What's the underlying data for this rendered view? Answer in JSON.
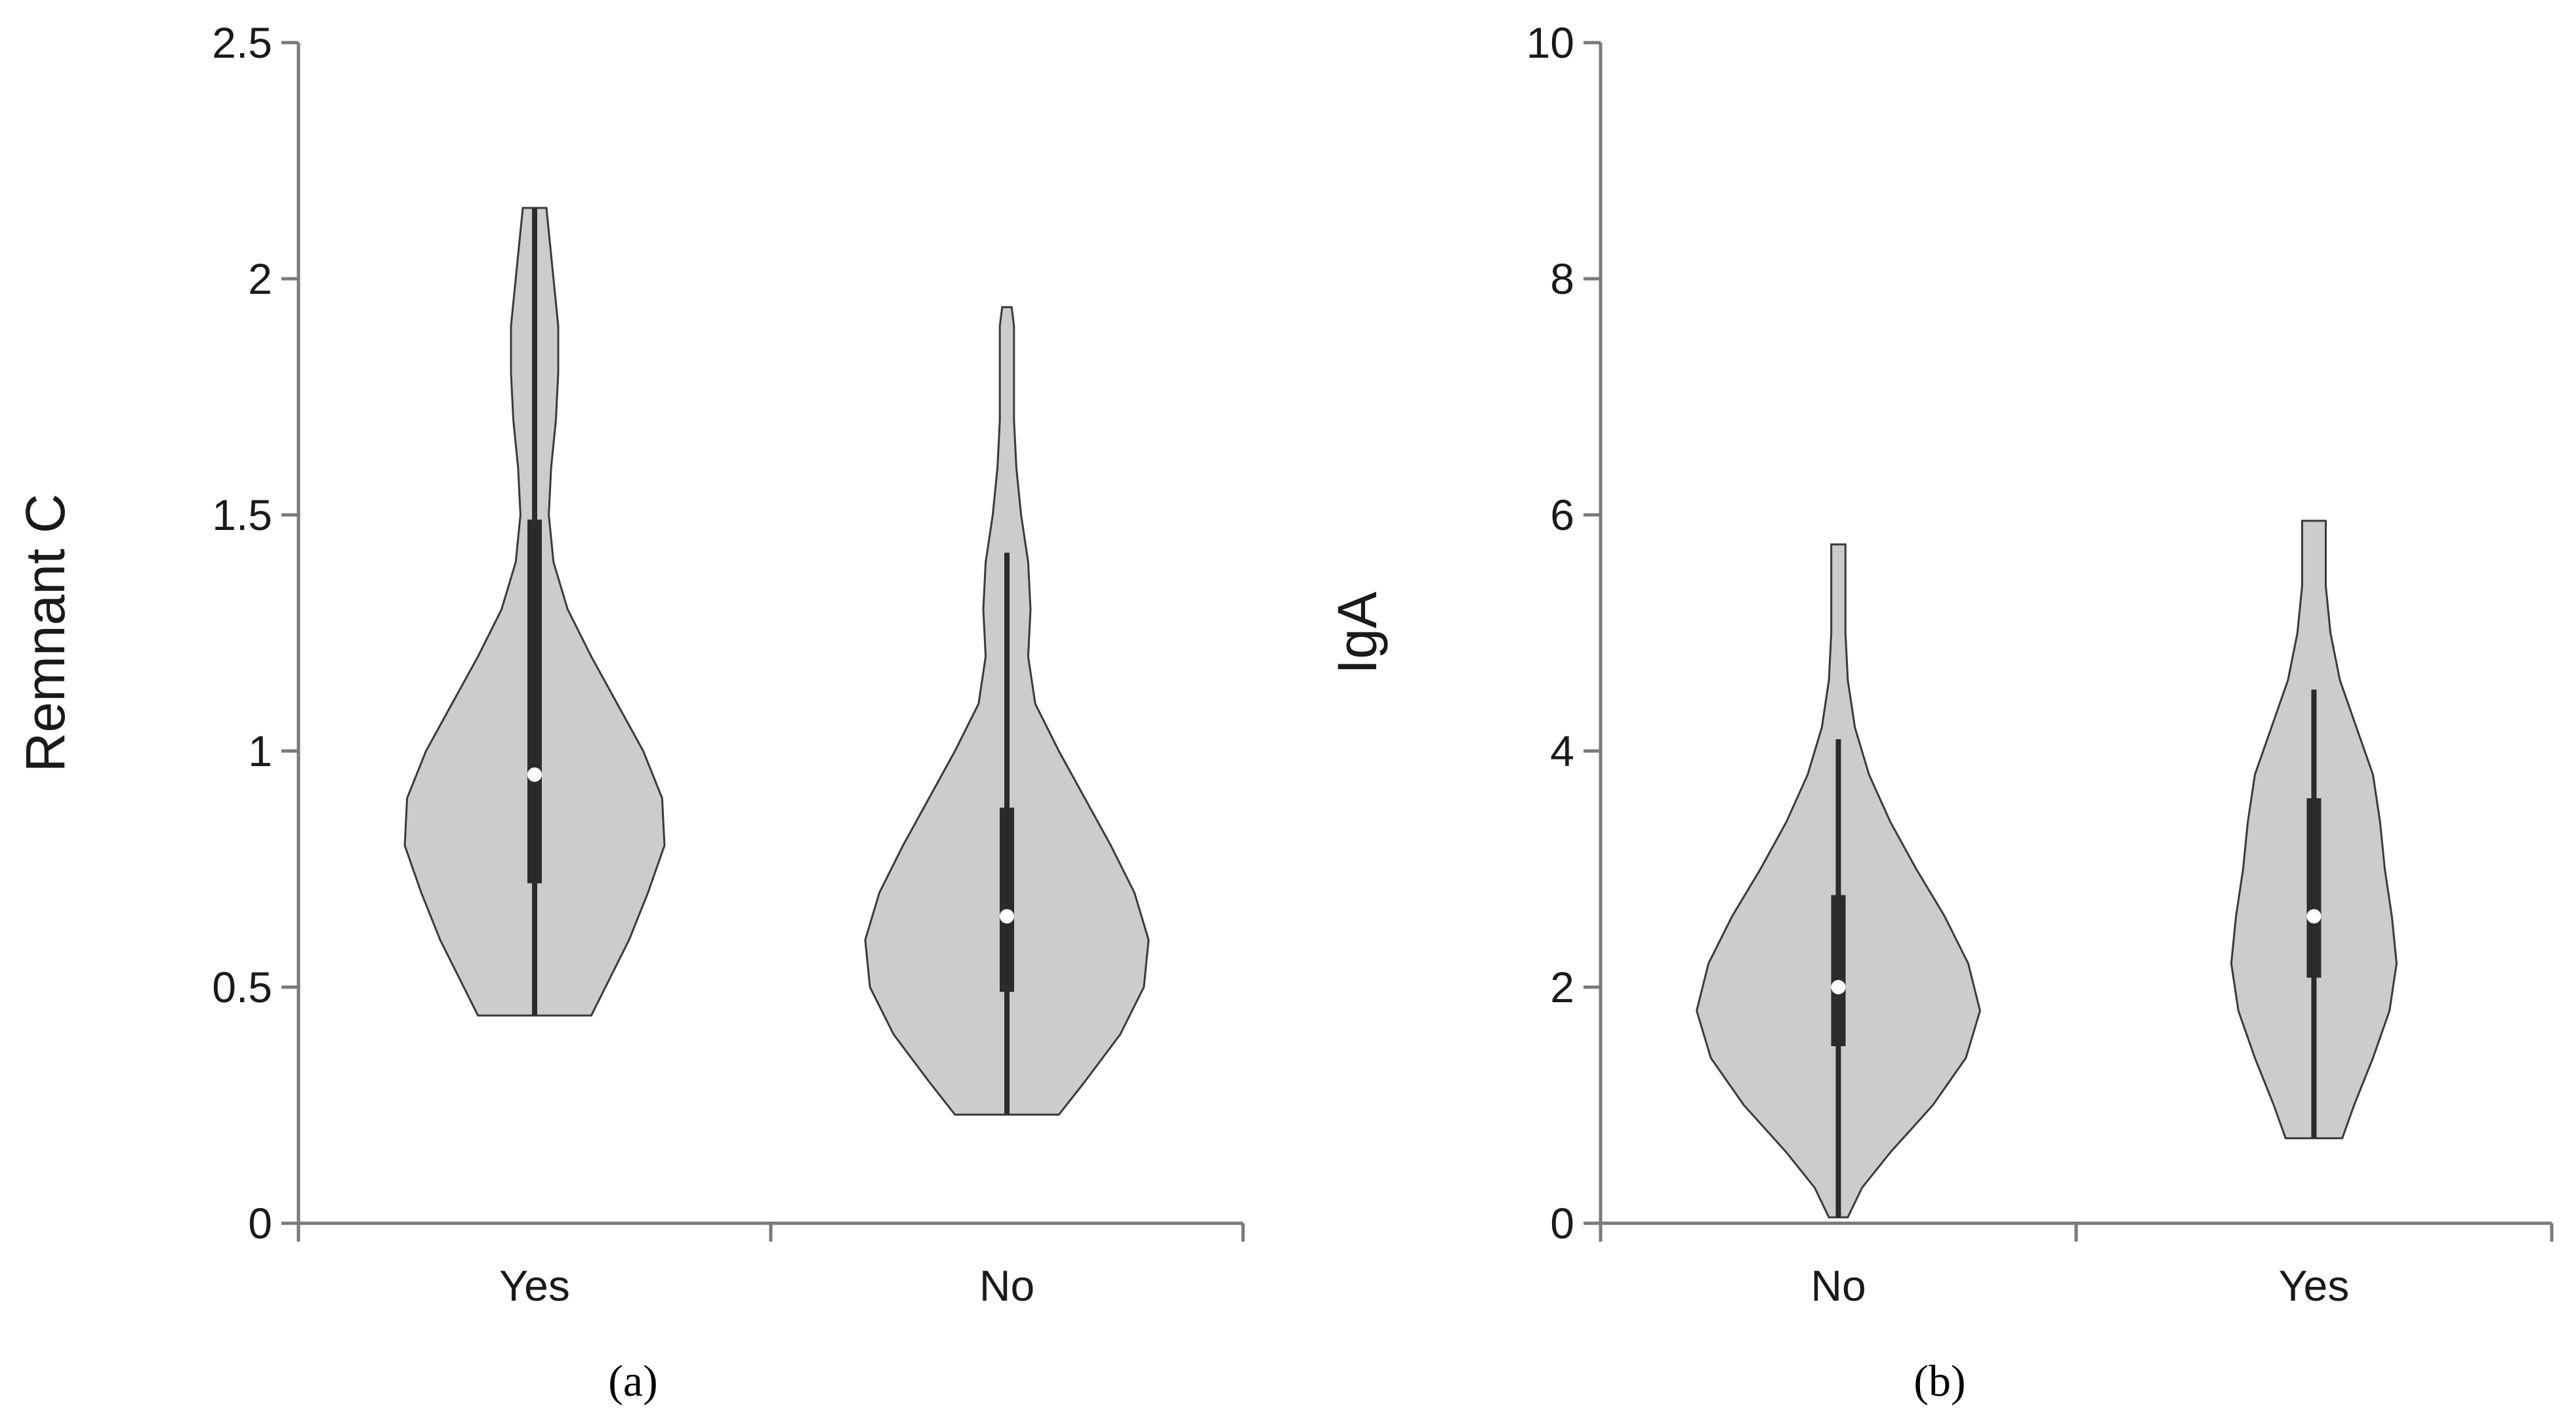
{
  "chart_data": [
    {
      "type": "violin",
      "panel_label": "(a)",
      "ylabel": "Remnant C",
      "xlabel": "",
      "ylim": [
        0,
        2.5
      ],
      "yticks": [
        0,
        0.5,
        1,
        1.5,
        2,
        2.5
      ],
      "ytick_labels": [
        "0",
        "0.5",
        "1",
        "1.5",
        "2",
        "2.5"
      ],
      "categories": [
        "Yes",
        "No"
      ],
      "grid": false,
      "series": [
        {
          "category": "Yes",
          "min": 0.44,
          "q1": 0.72,
          "median": 0.95,
          "q3": 1.49,
          "whisker_high": 2.15,
          "max": 2.15,
          "density": [
            [
              0.44,
              0.24
            ],
            [
              0.5,
              0.3
            ],
            [
              0.6,
              0.4
            ],
            [
              0.7,
              0.48
            ],
            [
              0.8,
              0.55
            ],
            [
              0.9,
              0.54
            ],
            [
              1.0,
              0.46
            ],
            [
              1.1,
              0.35
            ],
            [
              1.2,
              0.24
            ],
            [
              1.3,
              0.14
            ],
            [
              1.4,
              0.08
            ],
            [
              1.5,
              0.06
            ],
            [
              1.6,
              0.07
            ],
            [
              1.7,
              0.09
            ],
            [
              1.8,
              0.1
            ],
            [
              1.9,
              0.1
            ],
            [
              2.0,
              0.08
            ],
            [
              2.1,
              0.06
            ],
            [
              2.15,
              0.05
            ]
          ]
        },
        {
          "category": "No",
          "min": 0.23,
          "q1": 0.49,
          "median": 0.65,
          "q3": 0.88,
          "whisker_high": 1.42,
          "max": 1.94,
          "density": [
            [
              0.23,
              0.22
            ],
            [
              0.3,
              0.33
            ],
            [
              0.4,
              0.48
            ],
            [
              0.5,
              0.58
            ],
            [
              0.6,
              0.6
            ],
            [
              0.7,
              0.54
            ],
            [
              0.8,
              0.44
            ],
            [
              0.9,
              0.33
            ],
            [
              1.0,
              0.22
            ],
            [
              1.1,
              0.12
            ],
            [
              1.2,
              0.09
            ],
            [
              1.3,
              0.1
            ],
            [
              1.4,
              0.09
            ],
            [
              1.5,
              0.06
            ],
            [
              1.6,
              0.04
            ],
            [
              1.7,
              0.03
            ],
            [
              1.8,
              0.03
            ],
            [
              1.9,
              0.03
            ],
            [
              1.94,
              0.02
            ]
          ]
        }
      ]
    },
    {
      "type": "violin",
      "panel_label": "(b)",
      "ylabel": "IgA",
      "xlabel": "",
      "ylim": [
        0,
        10
      ],
      "yticks": [
        0,
        2,
        4,
        6,
        8,
        10
      ],
      "ytick_labels": [
        "0",
        "2",
        "4",
        "6",
        "8",
        "10"
      ],
      "categories": [
        "No",
        "Yes"
      ],
      "grid": false,
      "series": [
        {
          "category": "No",
          "min": 0.05,
          "q1": 1.5,
          "median": 2.0,
          "q3": 2.78,
          "whisker_high": 4.1,
          "max": 5.75,
          "density": [
            [
              0.05,
              0.04
            ],
            [
              0.3,
              0.1
            ],
            [
              0.6,
              0.22
            ],
            [
              1.0,
              0.4
            ],
            [
              1.4,
              0.54
            ],
            [
              1.8,
              0.6
            ],
            [
              2.2,
              0.55
            ],
            [
              2.6,
              0.45
            ],
            [
              3.0,
              0.33
            ],
            [
              3.4,
              0.22
            ],
            [
              3.8,
              0.13
            ],
            [
              4.2,
              0.07
            ],
            [
              4.6,
              0.04
            ],
            [
              5.0,
              0.03
            ],
            [
              5.4,
              0.03
            ],
            [
              5.75,
              0.03
            ]
          ]
        },
        {
          "category": "Yes",
          "min": 0.72,
          "q1": 2.08,
          "median": 2.6,
          "q3": 3.6,
          "whisker_high": 4.52,
          "max": 5.95,
          "density": [
            [
              0.72,
              0.12
            ],
            [
              1.0,
              0.17
            ],
            [
              1.4,
              0.25
            ],
            [
              1.8,
              0.32
            ],
            [
              2.2,
              0.35
            ],
            [
              2.6,
              0.33
            ],
            [
              3.0,
              0.3
            ],
            [
              3.4,
              0.28
            ],
            [
              3.8,
              0.25
            ],
            [
              4.2,
              0.18
            ],
            [
              4.6,
              0.11
            ],
            [
              5.0,
              0.07
            ],
            [
              5.4,
              0.05
            ],
            [
              5.7,
              0.05
            ],
            [
              5.95,
              0.05
            ]
          ]
        }
      ]
    }
  ]
}
